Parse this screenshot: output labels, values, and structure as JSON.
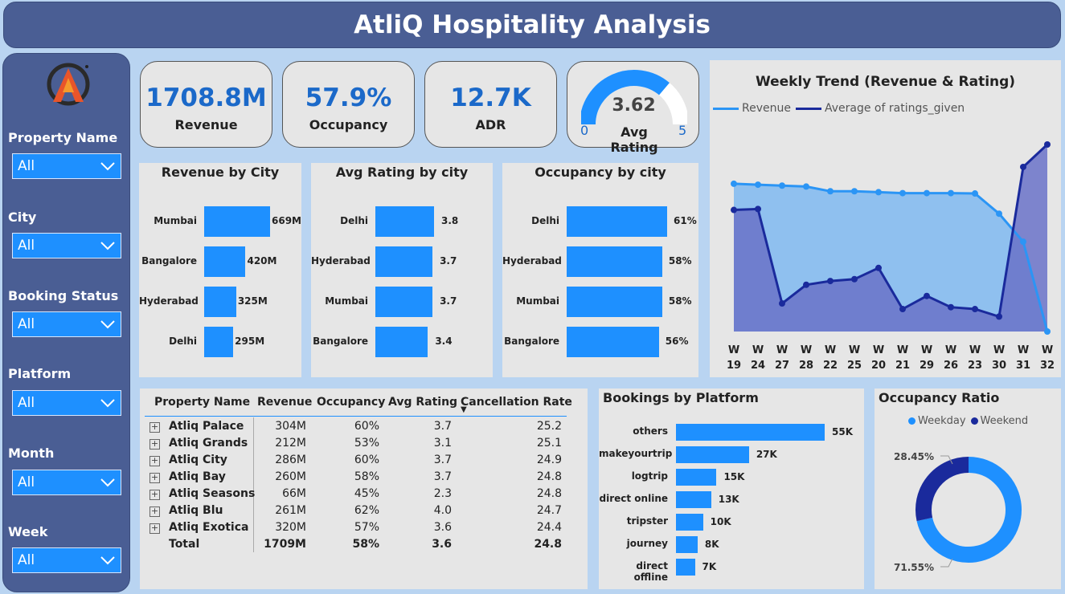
{
  "title": "AtliQ Hospitality Analysis",
  "filters": [
    {
      "label": "Property Name",
      "value": "All"
    },
    {
      "label": "City",
      "value": "All"
    },
    {
      "label": "Booking Status",
      "value": "All"
    },
    {
      "label": "Platform",
      "value": "All"
    },
    {
      "label": "Month",
      "value": "All"
    },
    {
      "label": "Week",
      "value": "All"
    }
  ],
  "kpis": {
    "revenue": {
      "value": "1708.8M",
      "label": "Revenue"
    },
    "occupancy": {
      "value": "57.9%",
      "label": "Occupancy"
    },
    "adr": {
      "value": "12.7K",
      "label": "ADR"
    },
    "rating": {
      "value": "3.62",
      "label": "Avg Rating",
      "min": "0",
      "max": "5",
      "fraction": 0.724
    }
  },
  "revenue_by_city": {
    "title": "Revenue by City",
    "chart_data": {
      "type": "bar",
      "categories": [
        "Mumbai",
        "Bangalore",
        "Hyderabad",
        "Delhi"
      ],
      "values": [
        669,
        420,
        325,
        295
      ],
      "labels": [
        "669M",
        "420M",
        "325M",
        "295M"
      ]
    }
  },
  "rating_by_city": {
    "title": "Avg Rating by city",
    "chart_data": {
      "type": "bar",
      "categories": [
        "Delhi",
        "Hyderabad",
        "Mumbai",
        "Bangalore"
      ],
      "values": [
        3.8,
        3.7,
        3.7,
        3.4
      ],
      "labels": [
        "3.8",
        "3.7",
        "3.7",
        "3.4"
      ]
    }
  },
  "occupancy_by_city": {
    "title": "Occupancy by city",
    "chart_data": {
      "type": "bar",
      "categories": [
        "Delhi",
        "Hyderabad",
        "Mumbai",
        "Bangalore"
      ],
      "values": [
        61,
        58,
        58,
        56
      ],
      "labels": [
        "61%",
        "58%",
        "58%",
        "56%"
      ]
    }
  },
  "weekly_trend": {
    "title": "Weekly Trend (Revenue & Rating)",
    "legend": [
      "Revenue",
      "Average of ratings_given"
    ],
    "weeks": [
      "19",
      "24",
      "27",
      "28",
      "22",
      "25",
      "20",
      "21",
      "29",
      "26",
      "23",
      "30",
      "31",
      "32"
    ],
    "week_prefix": "W",
    "chart_data": {
      "type": "area",
      "x": [
        "W 19",
        "W 24",
        "W 27",
        "W 28",
        "W 22",
        "W 25",
        "W 20",
        "W 21",
        "W 29",
        "W 26",
        "W 23",
        "W 30",
        "W 31",
        "W 32"
      ],
      "series": [
        {
          "name": "Revenue",
          "values": [
            0.79,
            0.785,
            0.78,
            0.775,
            0.75,
            0.75,
            0.745,
            0.74,
            0.74,
            0.74,
            0.738,
            0.63,
            0.48,
            0.0
          ]
        },
        {
          "name": "Average of ratings_given",
          "values": [
            0.65,
            0.655,
            0.15,
            0.25,
            0.27,
            0.28,
            0.34,
            0.12,
            0.19,
            0.13,
            0.12,
            0.08,
            0.88,
            1.0
          ]
        }
      ]
    }
  },
  "property_table": {
    "headers": [
      "Property Name",
      "Revenue",
      "Occupancy",
      "Avg Rating",
      "Cancellation Rate"
    ],
    "rows": [
      [
        "Atliq Palace",
        "304M",
        "60%",
        "3.7",
        "25.2"
      ],
      [
        "Atliq Grands",
        "212M",
        "53%",
        "3.1",
        "25.1"
      ],
      [
        "Atliq City",
        "286M",
        "60%",
        "3.7",
        "24.9"
      ],
      [
        "Atliq Bay",
        "260M",
        "58%",
        "3.7",
        "24.8"
      ],
      [
        "Atliq Seasons",
        "66M",
        "45%",
        "2.3",
        "24.8"
      ],
      [
        "Atliq Blu",
        "261M",
        "62%",
        "4.0",
        "24.7"
      ],
      [
        "Atliq Exotica",
        "320M",
        "57%",
        "3.6",
        "24.4"
      ]
    ],
    "total": [
      "Total",
      "1709M",
      "58%",
      "3.6",
      "24.8"
    ]
  },
  "bookings_by_platform": {
    "title": "Bookings by Platform",
    "chart_data": {
      "type": "bar",
      "categories": [
        "others",
        "makeyourtrip",
        "logtrip",
        "direct online",
        "tripster",
        "journey",
        "direct offline"
      ],
      "values": [
        55,
        27,
        15,
        13,
        10,
        8,
        7
      ],
      "labels": [
        "55K",
        "27K",
        "15K",
        "13K",
        "10K",
        "8K",
        "7K"
      ]
    }
  },
  "occupancy_ratio": {
    "title": "Occupancy Ratio",
    "legend": [
      "Weekday",
      "Weekend"
    ],
    "chart_data": {
      "type": "pie",
      "categories": [
        "Weekday",
        "Weekend"
      ],
      "values": [
        71.55,
        28.45
      ],
      "labels": [
        "71.55%",
        "28.45%"
      ]
    }
  },
  "colors": {
    "accent": "#1e90ff",
    "navy": "#1a2a9c",
    "panel": "#e6e6e6",
    "sidebar": "#4a5e94",
    "kpi_text": "#1b69c9"
  }
}
